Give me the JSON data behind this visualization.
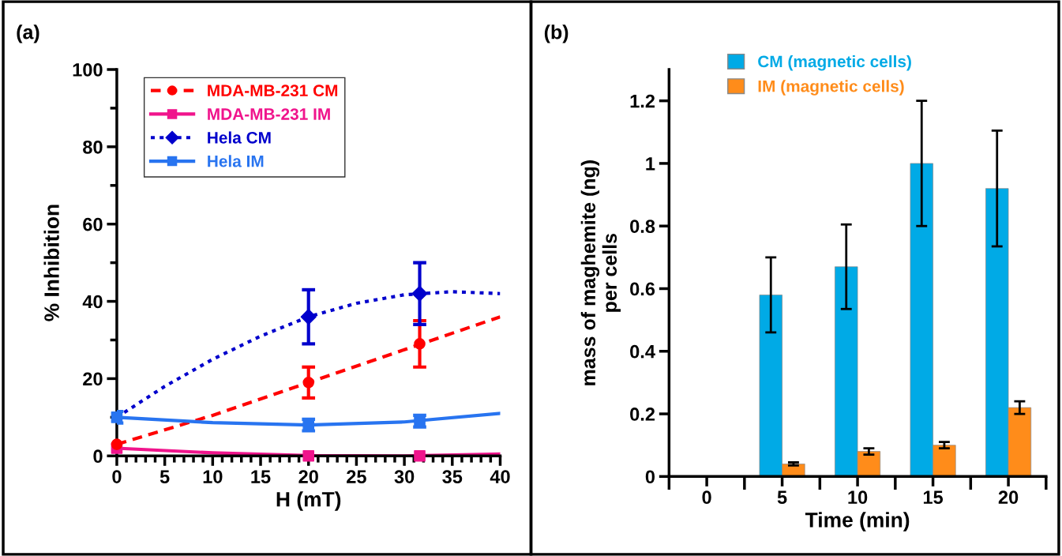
{
  "chart_data": [
    {
      "type": "line",
      "title": "(a)",
      "xlabel": "H (mT)",
      "ylabel": "% Inhibition",
      "xlim": [
        0,
        40
      ],
      "xticks": [
        0,
        5,
        10,
        15,
        20,
        25,
        30,
        35,
        40
      ],
      "ylim": [
        0,
        100
      ],
      "yticks": [
        0,
        20,
        40,
        60,
        80,
        100
      ],
      "grid": false,
      "legend": "top left",
      "series": [
        {
          "name": "MDA-MB-231 CM",
          "type": "scatter",
          "color": "#ff0000",
          "marker": "circle",
          "line_style": "dashed",
          "x": [
            0,
            20,
            31.6
          ],
          "values": [
            3,
            19,
            29
          ],
          "errors": [
            null,
            4,
            6
          ]
        },
        {
          "name": "MDA-MB-231 IM",
          "type": "scatter",
          "color": "#f0148c",
          "marker": "square",
          "line_style": "solid",
          "x": [
            0,
            20,
            31.6
          ],
          "values": [
            2,
            0,
            0
          ],
          "errors": [
            null,
            null,
            null
          ]
        },
        {
          "name": "Hela CM",
          "type": "scatter",
          "color": "#0000cc",
          "marker": "diamond",
          "line_style": "dotted",
          "x": [
            20,
            31.6
          ],
          "values": [
            36,
            42
          ],
          "errors": [
            7,
            8
          ]
        },
        {
          "name": "Hela IM",
          "type": "scatter",
          "color": "#2874f0",
          "marker": "square",
          "line_style": "solid",
          "x": [
            0,
            20,
            31.6
          ],
          "values": [
            10,
            8,
            9
          ],
          "errors": [
            1.5,
            1.5,
            1.5
          ]
        },
        {
          "type": "line",
          "color": "#ff0000",
          "line_style": "dashed",
          "x": [
            0,
            10,
            20,
            30,
            40
          ],
          "values": [
            3,
            10.5,
            19,
            27.5,
            36
          ]
        },
        {
          "type": "line",
          "color": "#f0148c",
          "line_style": "solid",
          "x": [
            0,
            10,
            20,
            30,
            40
          ],
          "values": [
            2,
            0.8,
            0.1,
            0,
            0.5
          ]
        },
        {
          "type": "line",
          "color": "#0000cc",
          "line_style": "dotted",
          "x": [
            0,
            5,
            10,
            15,
            20,
            25,
            30,
            35,
            40
          ],
          "values": [
            10,
            18,
            25,
            31,
            36,
            39.5,
            41.7,
            42.5,
            42
          ]
        },
        {
          "type": "line",
          "color": "#2874f0",
          "line_style": "solid",
          "x": [
            0,
            10,
            20,
            30,
            40
          ],
          "values": [
            10,
            8.6,
            8,
            8.8,
            11
          ]
        }
      ]
    },
    {
      "type": "bar",
      "title": "(b)",
      "xlabel": "Time (min)",
      "ylabel": "mass of maghemite (ng)\nper cells",
      "categories": [
        "0",
        "5",
        "10",
        "15",
        "20"
      ],
      "ylim": [
        0,
        1.3
      ],
      "yticks": [
        0,
        0.2,
        0.4,
        0.6,
        0.8,
        {
          "value": 1,
          "label": "1"
        },
        1.2
      ],
      "grid": false,
      "legend": "top",
      "series": [
        {
          "name": "CM (magnetic cells)",
          "color": "#00aae6",
          "values": [
            null,
            0.58,
            0.67,
            1.0,
            0.92
          ],
          "errors": [
            null,
            0.12,
            0.135,
            0.2,
            0.185
          ]
        },
        {
          "name": "IM (magnetic cells)",
          "color": "#ff8c1a",
          "values": [
            null,
            0.04,
            0.08,
            0.1,
            0.22
          ],
          "errors": [
            null,
            0.005,
            0.01,
            0.01,
            0.02
          ]
        }
      ]
    }
  ]
}
